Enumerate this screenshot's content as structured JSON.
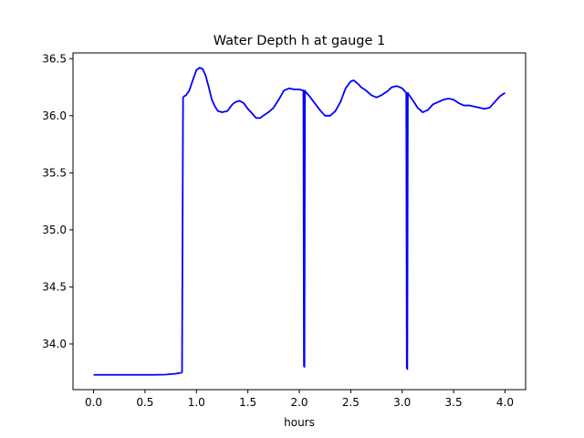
{
  "chart_data": {
    "type": "line",
    "title": "Water Depth h at gauge 1",
    "xlabel": "hours",
    "ylabel": "",
    "xlim": [
      -0.2,
      4.2
    ],
    "ylim": [
      33.6,
      36.55
    ],
    "xticks": [
      0.0,
      0.5,
      1.0,
      1.5,
      2.0,
      2.5,
      3.0,
      3.5,
      4.0
    ],
    "xtick_labels": [
      "0.0",
      "0.5",
      "1.0",
      "1.5",
      "2.0",
      "2.5",
      "3.0",
      "3.5",
      "4.0"
    ],
    "yticks": [
      34.0,
      34.5,
      35.0,
      35.5,
      36.0,
      36.5
    ],
    "ytick_labels": [
      "34.0",
      "34.5",
      "35.0",
      "35.5",
      "36.0",
      "36.5"
    ],
    "grid": false,
    "series": [
      {
        "color": "#0000ff",
        "x": [
          0.0,
          0.3,
          0.6,
          0.7,
          0.8,
          0.86,
          0.87,
          0.88,
          0.9,
          0.93,
          0.96,
          1.0,
          1.03,
          1.06,
          1.09,
          1.12,
          1.15,
          1.18,
          1.21,
          1.25,
          1.3,
          1.35,
          1.38,
          1.42,
          1.46,
          1.5,
          1.54,
          1.58,
          1.62,
          1.65,
          1.7,
          1.75,
          1.8,
          1.85,
          1.9,
          1.95,
          2.0,
          2.04,
          2.045,
          2.05,
          2.055,
          2.06,
          2.1,
          2.15,
          2.2,
          2.25,
          2.3,
          2.35,
          2.4,
          2.45,
          2.5,
          2.53,
          2.57,
          2.6,
          2.65,
          2.7,
          2.75,
          2.8,
          2.85,
          2.9,
          2.95,
          3.0,
          3.04,
          3.045,
          3.05,
          3.055,
          3.06,
          3.1,
          3.15,
          3.2,
          3.25,
          3.3,
          3.35,
          3.4,
          3.45,
          3.5,
          3.55,
          3.6,
          3.65,
          3.7,
          3.75,
          3.8,
          3.85,
          3.9,
          3.95,
          4.0
        ],
        "y": [
          33.73,
          33.73,
          33.73,
          33.732,
          33.74,
          33.75,
          36.16,
          36.17,
          36.18,
          36.22,
          36.3,
          36.4,
          36.42,
          36.41,
          36.35,
          36.25,
          36.14,
          36.08,
          36.04,
          36.03,
          36.04,
          36.1,
          36.12,
          36.13,
          36.11,
          36.06,
          36.02,
          35.98,
          35.98,
          36.0,
          36.03,
          36.07,
          36.14,
          36.22,
          36.24,
          36.23,
          36.23,
          36.22,
          33.81,
          33.8,
          36.22,
          36.21,
          36.17,
          36.11,
          36.05,
          36.0,
          36.0,
          36.04,
          36.12,
          36.24,
          36.3,
          36.31,
          36.28,
          36.25,
          36.22,
          36.18,
          36.16,
          36.18,
          36.21,
          36.25,
          36.26,
          36.24,
          36.2,
          33.79,
          33.78,
          36.2,
          36.19,
          36.14,
          36.07,
          36.03,
          36.05,
          36.1,
          36.12,
          36.14,
          36.15,
          36.14,
          36.11,
          36.09,
          36.09,
          36.08,
          36.07,
          36.06,
          36.07,
          36.12,
          36.17,
          36.2
        ]
      }
    ]
  }
}
